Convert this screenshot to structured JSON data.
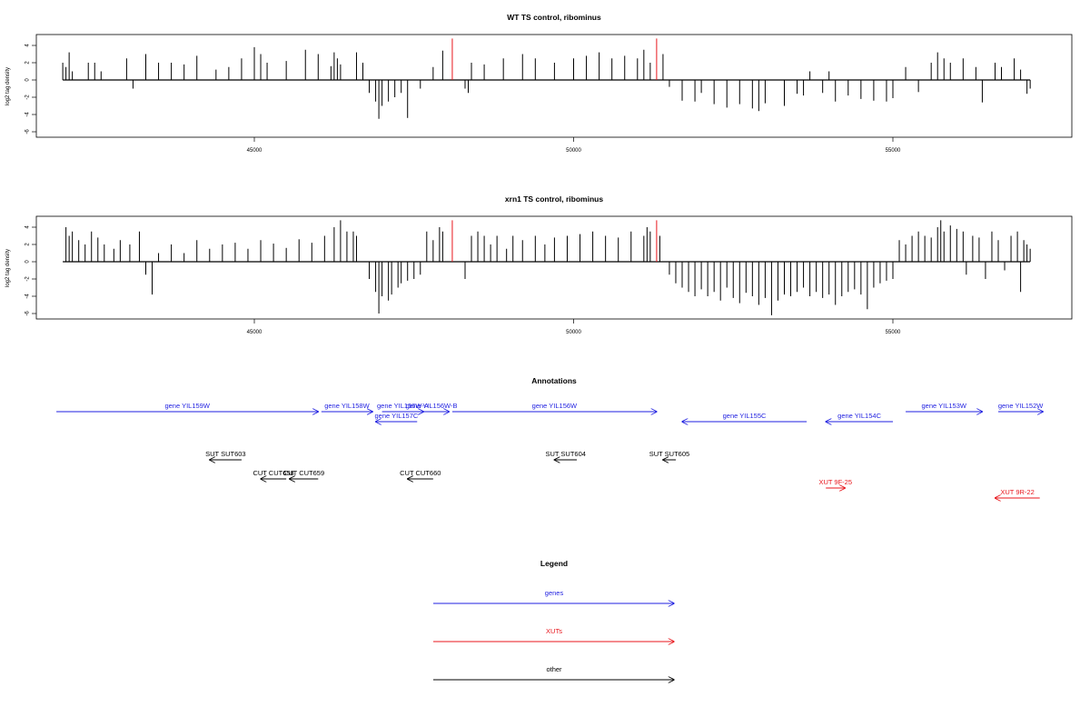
{
  "chart_data": [
    {
      "type": "bar",
      "title": "WT TS control, ribominus",
      "ylabel": "log2 tag density",
      "xlim": [
        41800,
        57600
      ],
      "ylim": [
        -6,
        5
      ],
      "yticks": [
        4,
        2,
        0,
        -2,
        -4,
        -6
      ],
      "xticks": [
        45000,
        50000,
        55000
      ],
      "markers": [
        48100,
        51300
      ],
      "marker_color": "#e8151b",
      "bar_color": "#000000",
      "bars": [
        [
          42000,
          2
        ],
        [
          42050,
          1.5
        ],
        [
          42100,
          3.2
        ],
        [
          42150,
          1
        ],
        [
          42400,
          2
        ],
        [
          42500,
          2
        ],
        [
          42600,
          1
        ],
        [
          43000,
          2.5
        ],
        [
          43100,
          -1
        ],
        [
          43300,
          3
        ],
        [
          43500,
          2
        ],
        [
          43700,
          2
        ],
        [
          43900,
          1.8
        ],
        [
          44100,
          2.8
        ],
        [
          44400,
          1.2
        ],
        [
          44600,
          1.5
        ],
        [
          44800,
          2.5
        ],
        [
          45000,
          3.8
        ],
        [
          45100,
          3
        ],
        [
          45200,
          2
        ],
        [
          45500,
          2.2
        ],
        [
          45800,
          3.5
        ],
        [
          46000,
          3
        ],
        [
          46200,
          1.6
        ],
        [
          46250,
          3.2
        ],
        [
          46300,
          2.5
        ],
        [
          46350,
          1.8
        ],
        [
          46600,
          3.2
        ],
        [
          46700,
          2
        ],
        [
          46800,
          -1.5
        ],
        [
          46900,
          -2.5
        ],
        [
          46950,
          -4.5
        ],
        [
          47000,
          -3
        ],
        [
          47100,
          -2.5
        ],
        [
          47200,
          -2
        ],
        [
          47300,
          -1.5
        ],
        [
          47400,
          -4.4
        ],
        [
          47600,
          -1
        ],
        [
          47800,
          1.5
        ],
        [
          47950,
          3.4
        ],
        [
          48300,
          -1
        ],
        [
          48350,
          -1.5
        ],
        [
          48400,
          2
        ],
        [
          48600,
          1.8
        ],
        [
          48900,
          2.5
        ],
        [
          49200,
          3
        ],
        [
          49400,
          2.5
        ],
        [
          49700,
          2
        ],
        [
          50000,
          2.5
        ],
        [
          50200,
          2.8
        ],
        [
          50400,
          3.2
        ],
        [
          50600,
          2.5
        ],
        [
          50800,
          2.8
        ],
        [
          51000,
          2.5
        ],
        [
          51100,
          3.5
        ],
        [
          51200,
          2
        ],
        [
          51400,
          3
        ],
        [
          51500,
          -0.8
        ],
        [
          51700,
          -2.4
        ],
        [
          51900,
          -2.5
        ],
        [
          52000,
          -1.5
        ],
        [
          52200,
          -2.8
        ],
        [
          52400,
          -3.2
        ],
        [
          52600,
          -2.8
        ],
        [
          52800,
          -3.3
        ],
        [
          52900,
          -3.6
        ],
        [
          53000,
          -2.7
        ],
        [
          53300,
          -3
        ],
        [
          53500,
          -1.6
        ],
        [
          53600,
          -1.8
        ],
        [
          53700,
          1
        ],
        [
          53900,
          -1.5
        ],
        [
          54000,
          1
        ],
        [
          54100,
          -2.5
        ],
        [
          54300,
          -1.8
        ],
        [
          54500,
          -2.2
        ],
        [
          54700,
          -2.4
        ],
        [
          54900,
          -2.5
        ],
        [
          55000,
          -2.1
        ],
        [
          55200,
          1.5
        ],
        [
          55400,
          -1.4
        ],
        [
          55600,
          2
        ],
        [
          55700,
          3.2
        ],
        [
          55800,
          2.5
        ],
        [
          55900,
          2
        ],
        [
          56100,
          2.5
        ],
        [
          56300,
          1.5
        ],
        [
          56400,
          -2.6
        ],
        [
          56600,
          2
        ],
        [
          56700,
          1.5
        ],
        [
          56900,
          2.5
        ],
        [
          57000,
          1.2
        ],
        [
          57100,
          -1.6
        ],
        [
          57150,
          -1
        ]
      ]
    },
    {
      "type": "bar",
      "title": "xrn1 TS control, ribominus",
      "ylabel": "log2 tag density",
      "xlim": [
        41800,
        57600
      ],
      "ylim": [
        -6,
        5
      ],
      "yticks": [
        4,
        2,
        0,
        -2,
        -4,
        -6
      ],
      "xticks": [
        45000,
        50000,
        55000
      ],
      "markers": [
        48100,
        51300
      ],
      "marker_color": "#e8151b",
      "bar_color": "#000000",
      "bars": [
        [
          42050,
          4
        ],
        [
          42100,
          3
        ],
        [
          42150,
          3.5
        ],
        [
          42250,
          2.5
        ],
        [
          42350,
          2
        ],
        [
          42450,
          3.5
        ],
        [
          42550,
          2.8
        ],
        [
          42650,
          2
        ],
        [
          42800,
          1.5
        ],
        [
          42900,
          2.5
        ],
        [
          43050,
          2
        ],
        [
          43200,
          3.5
        ],
        [
          43300,
          -1.5
        ],
        [
          43400,
          -3.8
        ],
        [
          43500,
          1
        ],
        [
          43700,
          2
        ],
        [
          43900,
          1
        ],
        [
          44100,
          2.5
        ],
        [
          44300,
          1.5
        ],
        [
          44500,
          2
        ],
        [
          44700,
          2.2
        ],
        [
          44900,
          1.5
        ],
        [
          45100,
          2.5
        ],
        [
          45300,
          2.1
        ],
        [
          45500,
          1.6
        ],
        [
          45700,
          2.6
        ],
        [
          45900,
          2.2
        ],
        [
          46100,
          3
        ],
        [
          46250,
          4
        ],
        [
          46350,
          4.8
        ],
        [
          46450,
          3.5
        ],
        [
          46550,
          3.5
        ],
        [
          46600,
          3
        ],
        [
          46800,
          -2
        ],
        [
          46900,
          -3.5
        ],
        [
          46950,
          -6
        ],
        [
          47000,
          -4
        ],
        [
          47100,
          -4.5
        ],
        [
          47150,
          -3.8
        ],
        [
          47250,
          -3
        ],
        [
          47300,
          -2.5
        ],
        [
          47400,
          -2.2
        ],
        [
          47500,
          -2
        ],
        [
          47600,
          -1.5
        ],
        [
          47700,
          3.5
        ],
        [
          47800,
          2.5
        ],
        [
          47900,
          4
        ],
        [
          47950,
          3.5
        ],
        [
          48300,
          -2
        ],
        [
          48400,
          3
        ],
        [
          48500,
          3.5
        ],
        [
          48600,
          3
        ],
        [
          48700,
          2
        ],
        [
          48800,
          3
        ],
        [
          48950,
          1.5
        ],
        [
          49050,
          3
        ],
        [
          49200,
          2.5
        ],
        [
          49400,
          3
        ],
        [
          49550,
          2
        ],
        [
          49700,
          2.8
        ],
        [
          49900,
          3
        ],
        [
          50100,
          3.2
        ],
        [
          50300,
          3.5
        ],
        [
          50500,
          3
        ],
        [
          50700,
          2.8
        ],
        [
          50900,
          3.5
        ],
        [
          51100,
          3
        ],
        [
          51150,
          4
        ],
        [
          51200,
          3.5
        ],
        [
          51350,
          3
        ],
        [
          51500,
          -1.5
        ],
        [
          51600,
          -2.5
        ],
        [
          51700,
          -3
        ],
        [
          51800,
          -3.5
        ],
        [
          51900,
          -4
        ],
        [
          52000,
          -3.2
        ],
        [
          52100,
          -4
        ],
        [
          52200,
          -3.5
        ],
        [
          52300,
          -4.5
        ],
        [
          52400,
          -3
        ],
        [
          52500,
          -4.2
        ],
        [
          52600,
          -4.8
        ],
        [
          52700,
          -3.6
        ],
        [
          52800,
          -4
        ],
        [
          52900,
          -5
        ],
        [
          53000,
          -4.2
        ],
        [
          53100,
          -6.2
        ],
        [
          53200,
          -4.5
        ],
        [
          53300,
          -3.8
        ],
        [
          53400,
          -4
        ],
        [
          53500,
          -3.5
        ],
        [
          53600,
          -3
        ],
        [
          53700,
          -4
        ],
        [
          53800,
          -3.5
        ],
        [
          53900,
          -4.2
        ],
        [
          54000,
          -3.8
        ],
        [
          54100,
          -5
        ],
        [
          54200,
          -4
        ],
        [
          54300,
          -3.5
        ],
        [
          54400,
          -3.2
        ],
        [
          54500,
          -3.8
        ],
        [
          54600,
          -5.5
        ],
        [
          54700,
          -3
        ],
        [
          54800,
          -2.5
        ],
        [
          54900,
          -2.2
        ],
        [
          55000,
          -2
        ],
        [
          55100,
          2.5
        ],
        [
          55200,
          2
        ],
        [
          55300,
          3
        ],
        [
          55400,
          3.5
        ],
        [
          55500,
          3
        ],
        [
          55600,
          2.8
        ],
        [
          55700,
          4
        ],
        [
          55750,
          4.8
        ],
        [
          55800,
          3.5
        ],
        [
          55900,
          4.2
        ],
        [
          56000,
          3.8
        ],
        [
          56100,
          3.5
        ],
        [
          56150,
          -1.5
        ],
        [
          56250,
          3
        ],
        [
          56350,
          2.8
        ],
        [
          56450,
          -2
        ],
        [
          56550,
          3.5
        ],
        [
          56650,
          2.5
        ],
        [
          56750,
          -1
        ],
        [
          56850,
          3
        ],
        [
          56950,
          3.5
        ],
        [
          57000,
          -3.5
        ],
        [
          57050,
          2.5
        ],
        [
          57100,
          2
        ],
        [
          57150,
          1.5
        ]
      ]
    },
    {
      "type": "table",
      "title": "Annotations",
      "xlim": [
        41800,
        57600
      ],
      "features": [
        {
          "label": "gene YIL159W",
          "start": 41900,
          "end": 46000,
          "strand": "+",
          "kind": "gene",
          "row": 0
        },
        {
          "label": "gene YIL158W",
          "start": 46050,
          "end": 46850,
          "strand": "+",
          "kind": "gene",
          "row": 0
        },
        {
          "label": "gene YIL157C",
          "start": 46900,
          "end": 47550,
          "strand": "-",
          "kind": "gene",
          "row": 1
        },
        {
          "label": "gene YIL156W-A",
          "start": 47000,
          "end": 47650,
          "strand": "+",
          "kind": "gene",
          "row": 0
        },
        {
          "label": "gene YIL156W-B",
          "start": 47500,
          "end": 48050,
          "strand": "+",
          "kind": "gene",
          "row": 0
        },
        {
          "label": "gene YIL156W",
          "start": 48100,
          "end": 51300,
          "strand": "+",
          "kind": "gene",
          "row": 0
        },
        {
          "label": "gene YIL155C",
          "start": 51700,
          "end": 53650,
          "strand": "-",
          "kind": "gene",
          "row": 1
        },
        {
          "label": "gene YIL154C",
          "start": 53950,
          "end": 55000,
          "strand": "-",
          "kind": "gene",
          "row": 1
        },
        {
          "label": "gene YIL153W",
          "start": 55200,
          "end": 56400,
          "strand": "+",
          "kind": "gene",
          "row": 0
        },
        {
          "label": "gene YIL152W",
          "start": 56650,
          "end": 57350,
          "strand": "+",
          "kind": "gene",
          "row": 0
        },
        {
          "label": "SUT SUT603",
          "start": 44300,
          "end": 44800,
          "strand": "-",
          "kind": "other",
          "row": 2
        },
        {
          "label": "SUT SUT604",
          "start": 49700,
          "end": 50050,
          "strand": "-",
          "kind": "other",
          "row": 2
        },
        {
          "label": "SUT SUT605",
          "start": 51400,
          "end": 51600,
          "strand": "-",
          "kind": "other",
          "row": 2
        },
        {
          "label": "CUT CUT658",
          "start": 45100,
          "end": 45500,
          "strand": "-",
          "kind": "other",
          "row": 3
        },
        {
          "label": "CUT CUT659",
          "start": 45550,
          "end": 46000,
          "strand": "-",
          "kind": "other",
          "row": 3
        },
        {
          "label": "CUT CUT660",
          "start": 47400,
          "end": 47800,
          "strand": "-",
          "kind": "other",
          "row": 3
        },
        {
          "label": "XUT 9F-25",
          "start": 53950,
          "end": 54250,
          "strand": "+",
          "kind": "xut",
          "row": 4
        },
        {
          "label": "XUT 9R-22",
          "start": 56600,
          "end": 57300,
          "strand": "-",
          "kind": "xut",
          "row": 5
        }
      ]
    }
  ],
  "legend": {
    "title": "Legend",
    "items": [
      {
        "label": "genes",
        "color": "#1f1fe0"
      },
      {
        "label": "XUTs",
        "color": "#e8151b"
      },
      {
        "label": "other",
        "color": "#000000"
      }
    ]
  },
  "colors": {
    "gene": "#1f1fe0",
    "xut": "#e8151b",
    "other": "#000000"
  }
}
